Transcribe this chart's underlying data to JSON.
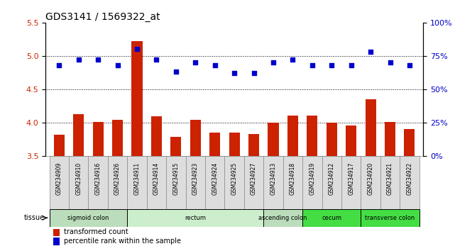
{
  "title": "GDS3141 / 1569322_at",
  "samples": [
    "GSM234909",
    "GSM234910",
    "GSM234916",
    "GSM234926",
    "GSM234911",
    "GSM234914",
    "GSM234915",
    "GSM234923",
    "GSM234924",
    "GSM234925",
    "GSM234927",
    "GSM234913",
    "GSM234918",
    "GSM234919",
    "GSM234912",
    "GSM234917",
    "GSM234920",
    "GSM234921",
    "GSM234922"
  ],
  "bar_values": [
    3.82,
    4.12,
    4.01,
    4.04,
    5.22,
    4.09,
    3.78,
    4.04,
    3.85,
    3.85,
    3.83,
    4.0,
    4.1,
    4.1,
    4.0,
    3.95,
    4.35,
    4.01,
    3.9
  ],
  "dot_values": [
    68,
    72,
    72,
    68,
    80,
    72,
    63,
    70,
    68,
    62,
    62,
    70,
    72,
    68,
    68,
    68,
    78,
    70,
    68
  ],
  "ylim_left": [
    3.5,
    5.5
  ],
  "ylim_right": [
    0,
    100
  ],
  "yticks_left": [
    3.5,
    4.0,
    4.5,
    5.0,
    5.5
  ],
  "yticks_right": [
    0,
    25,
    50,
    75,
    100
  ],
  "ytick_labels_right": [
    "0%",
    "25%",
    "50%",
    "75%",
    "100%"
  ],
  "hlines": [
    4.0,
    4.5,
    5.0
  ],
  "bar_color": "#cc2200",
  "dot_color": "#0000cc",
  "tissue_groups": [
    {
      "label": "sigmoid colon",
      "start": 0,
      "end": 4,
      "color": "#bbddbb"
    },
    {
      "label": "rectum",
      "start": 4,
      "end": 11,
      "color": "#cceecc"
    },
    {
      "label": "ascending colon",
      "start": 11,
      "end": 13,
      "color": "#bbddbb"
    },
    {
      "label": "cecum",
      "start": 13,
      "end": 16,
      "color": "#44dd44"
    },
    {
      "label": "transverse colon",
      "start": 16,
      "end": 19,
      "color": "#44dd44"
    }
  ],
  "legend_bar_label": "transformed count",
  "legend_dot_label": "percentile rank within the sample",
  "title_fontsize": 10,
  "axis_label_color_left": "#cc2200",
  "axis_label_color_right": "#0000cc",
  "bg_color": "#ffffff",
  "plot_bg_color": "#ffffff",
  "xtick_box_color": "#dddddd"
}
